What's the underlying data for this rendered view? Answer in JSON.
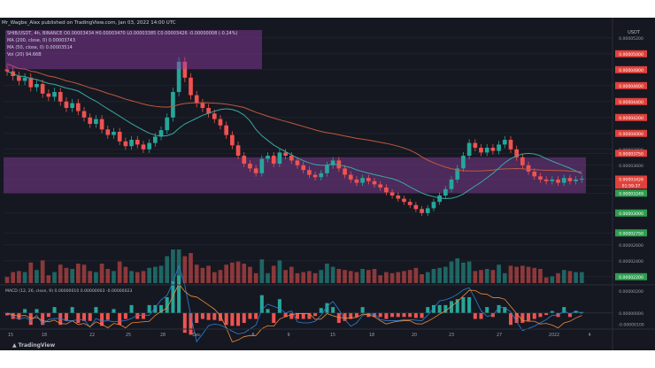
{
  "header": {
    "title_line": "Mr_Wagbe_Alex published on TradingView.com, Jan 03, 2022 14:00 UTC",
    "legend_lines": [
      "SHIB/USDT, 4h, BINANCE  O0.00003434  H0.00003470  L0.00003385  C0.00003426  -0.00000008 (-0.24%)",
      "MA (200, close, 0)  0.00003743",
      "MA (50, close, 0)  0.00003514",
      "Vol (20)  94.66B"
    ]
  },
  "footer": {
    "brand": "TradingView"
  },
  "colors": {
    "background": "#151821",
    "up": "#26a69a",
    "down": "#ef5350",
    "ma200": "#c0583d",
    "ma50": "#3aa7a0",
    "zone": "#7a3a8c",
    "macd_line": "#2e7fd6",
    "signal_line": "#ef8a3a"
  },
  "chart_data": {
    "type": "candlestick",
    "title": "SHIB/USDT, 4h, BINANCE",
    "price_axis": {
      "currency": "USDT",
      "ticks": [
        {
          "label": "0.00005200",
          "value": 5.2e-05,
          "highlight": "none"
        },
        {
          "label": "0.00005000",
          "value": 5e-05,
          "highlight": "red"
        },
        {
          "label": "0.00004800",
          "value": 4.8e-05,
          "highlight": "red"
        },
        {
          "label": "0.00004600",
          "value": 4.6e-05,
          "highlight": "red"
        },
        {
          "label": "0.00004400",
          "value": 4.4e-05,
          "highlight": "red"
        },
        {
          "label": "0.00004200",
          "value": 4.2e-05,
          "highlight": "red"
        },
        {
          "label": "0.00004000",
          "value": 4e-05,
          "highlight": "red"
        },
        {
          "label": "0.00003800",
          "value": 3.8e-05,
          "highlight": "none"
        },
        {
          "label": "0.00003750",
          "value": 3.75e-05,
          "highlight": "red"
        },
        {
          "label": "0.00003600",
          "value": 3.6e-05,
          "highlight": "none"
        },
        {
          "label": "0.00003426",
          "value": 3.426e-05,
          "highlight": "red"
        },
        {
          "label": "01:59:37",
          "value": 3.35e-05,
          "highlight": "red"
        },
        {
          "label": "0.00003249",
          "value": 3.249e-05,
          "highlight": "green"
        },
        {
          "label": "0.00003000",
          "value": 3e-05,
          "highlight": "green"
        },
        {
          "label": "0.00002750",
          "value": 2.75e-05,
          "highlight": "green"
        },
        {
          "label": "0.00002600",
          "value": 2.6e-05,
          "highlight": "none"
        },
        {
          "label": "0.00002400",
          "value": 2.4e-05,
          "highlight": "none"
        },
        {
          "label": "0.00002200",
          "value": 2.2e-05,
          "highlight": "green"
        }
      ]
    },
    "x_ticks": [
      "15",
      "18",
      "22",
      "25",
      "28",
      "Dec",
      "6",
      "9",
      "15",
      "18",
      "20",
      "23",
      "27",
      "2022",
      "4"
    ],
    "macd": {
      "legend": "MACD (12, 26, close, 9)  0.00000010  0.00000003  -0.00000023",
      "ticks": [
        {
          "label": "0.00000200",
          "value": 2e-06
        },
        {
          "label": "0.00000000",
          "value": 0
        },
        {
          "label": "-0.00000100",
          "value": -1e-06
        }
      ]
    },
    "zones": [
      {
        "from": 3.25e-05,
        "to": 3.7e-05
      }
    ],
    "close_series": [
      4.78e-05,
      4.72e-05,
      4.66e-05,
      4.7e-05,
      4.58e-05,
      4.62e-05,
      4.5e-05,
      4.46e-05,
      4.52e-05,
      4.4e-05,
      4.32e-05,
      4.38e-05,
      4.28e-05,
      4.2e-05,
      4.12e-05,
      4.18e-05,
      4.05e-05,
      3.98e-05,
      4.02e-05,
      3.9e-05,
      3.84e-05,
      3.92e-05,
      3.86e-05,
      3.8e-05,
      3.88e-05,
      3.96e-05,
      4.04e-05,
      4.2e-05,
      4.52e-05,
      4.9e-05,
      4.7e-05,
      4.48e-05,
      4.38e-05,
      4.32e-05,
      4.25e-05,
      4.18e-05,
      4.1e-05,
      3.98e-05,
      3.85e-05,
      3.72e-05,
      3.62e-05,
      3.56e-05,
      3.5e-05,
      3.68e-05,
      3.72e-05,
      3.62e-05,
      3.76e-05,
      3.72e-05,
      3.66e-05,
      3.6e-05,
      3.54e-05,
      3.48e-05,
      3.45e-05,
      3.5e-05,
      3.6e-05,
      3.66e-05,
      3.56e-05,
      3.48e-05,
      3.42e-05,
      3.38e-05,
      3.44e-05,
      3.4e-05,
      3.36e-05,
      3.32e-05,
      3.26e-05,
      3.22e-05,
      3.18e-05,
      3.14e-05,
      3.1e-05,
      3.05e-05,
      3e-05,
      3.06e-05,
      3.14e-05,
      3.22e-05,
      3.3e-05,
      3.42e-05,
      3.56e-05,
      3.72e-05,
      3.88e-05,
      3.82e-05,
      3.76e-05,
      3.82e-05,
      3.78e-05,
      3.86e-05,
      3.92e-05,
      3.8e-05,
      3.7e-05,
      3.6e-05,
      3.52e-05,
      3.46e-05,
      3.42e-05,
      3.4e-05,
      3.42e-05,
      3.38e-05,
      3.44e-05,
      3.4e-05,
      3.42e-05,
      3.43e-05
    ]
  }
}
